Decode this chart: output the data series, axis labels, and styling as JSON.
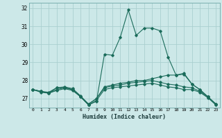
{
  "xlabel": "Humidex (Indice chaleur)",
  "x": [
    0,
    1,
    2,
    3,
    4,
    5,
    6,
    7,
    8,
    9,
    10,
    11,
    12,
    13,
    14,
    15,
    16,
    17,
    18,
    19,
    20,
    21,
    22,
    23
  ],
  "series": {
    "line1": [
      27.5,
      27.4,
      27.3,
      27.6,
      27.6,
      27.5,
      27.1,
      26.65,
      26.85,
      29.45,
      29.4,
      30.4,
      31.9,
      30.5,
      30.9,
      30.9,
      30.75,
      29.3,
      28.3,
      28.35,
      27.8,
      27.5,
      27.1,
      26.7
    ],
    "line2": [
      27.5,
      27.4,
      27.35,
      27.6,
      27.65,
      27.55,
      27.15,
      26.7,
      27.0,
      27.65,
      27.75,
      27.85,
      27.9,
      28.0,
      28.0,
      28.1,
      28.2,
      28.3,
      28.3,
      28.4,
      27.8,
      27.5,
      27.1,
      26.7
    ],
    "line3": [
      27.5,
      27.4,
      27.3,
      27.5,
      27.6,
      27.5,
      27.1,
      26.7,
      27.0,
      27.6,
      27.7,
      27.75,
      27.85,
      27.9,
      27.95,
      28.0,
      27.9,
      27.8,
      27.75,
      27.65,
      27.6,
      27.4,
      27.1,
      26.7
    ],
    "line4": [
      27.5,
      27.35,
      27.3,
      27.45,
      27.55,
      27.45,
      27.1,
      26.65,
      26.9,
      27.5,
      27.6,
      27.65,
      27.7,
      27.75,
      27.8,
      27.85,
      27.75,
      27.65,
      27.6,
      27.5,
      27.5,
      27.35,
      27.05,
      26.65
    ]
  },
  "color": "#1a6b5a",
  "bg_color": "#cce8e8",
  "grid_color": "#aacfcf",
  "ylim": [
    26.5,
    32.3
  ],
  "yticks": [
    27,
    28,
    29,
    30,
    31,
    32
  ],
  "xlim": [
    -0.5,
    23.5
  ]
}
